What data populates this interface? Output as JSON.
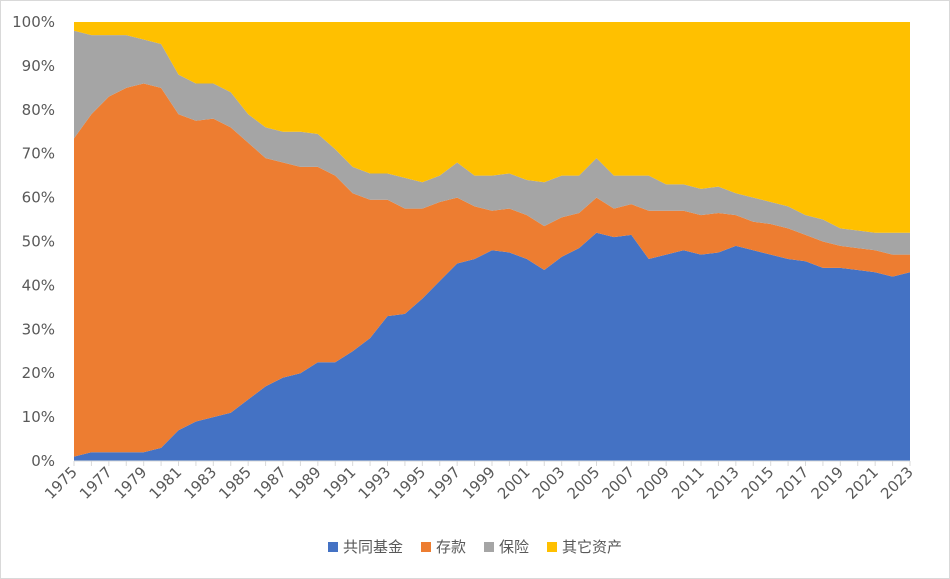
{
  "chart_data": {
    "type": "area",
    "stacked": "percent",
    "title": "",
    "xlabel": "",
    "ylabel": "",
    "ylim": [
      0,
      100
    ],
    "y_ticks": [
      "0%",
      "10%",
      "20%",
      "30%",
      "40%",
      "50%",
      "60%",
      "70%",
      "80%",
      "90%",
      "100%"
    ],
    "grid": false,
    "legend_position": "bottom",
    "x": [
      1975,
      1976,
      1977,
      1978,
      1979,
      1980,
      1981,
      1982,
      1983,
      1984,
      1985,
      1986,
      1987,
      1988,
      1989,
      1990,
      1991,
      1992,
      1993,
      1994,
      1995,
      1996,
      1997,
      1998,
      1999,
      2000,
      2001,
      2002,
      2003,
      2004,
      2005,
      2006,
      2007,
      2008,
      2009,
      2010,
      2011,
      2012,
      2013,
      2014,
      2015,
      2016,
      2017,
      2018,
      2019,
      2020,
      2021,
      2022,
      2023
    ],
    "x_tick_labels": [
      "1975",
      "1977",
      "1979",
      "1981",
      "1983",
      "1985",
      "1987",
      "1989",
      "1991",
      "1993",
      "1995",
      "1997",
      "1999",
      "2001",
      "2003",
      "2005",
      "2007",
      "2009",
      "2011",
      "2013",
      "2015",
      "2017",
      "2019",
      "2021",
      "2023"
    ],
    "series": [
      {
        "name": "共同基金",
        "color": "#4472c4",
        "values": [
          1,
          2,
          2,
          2,
          2,
          3,
          7,
          9,
          10,
          11,
          14,
          17,
          19,
          20,
          22.5,
          22.5,
          25,
          28,
          33,
          33.5,
          37,
          41,
          45,
          46,
          48,
          47.5,
          46,
          43.5,
          46.5,
          48.5,
          52,
          51,
          51.5,
          46,
          47,
          48,
          47,
          47.5,
          49,
          48,
          47,
          46,
          45.5,
          44,
          44,
          43.5,
          43,
          42,
          43
        ]
      },
      {
        "name": "存款",
        "color": "#ed7d31",
        "values": [
          72.5,
          77,
          81,
          83,
          84,
          82,
          72,
          68.5,
          68,
          65,
          58.5,
          52,
          49,
          47,
          44.5,
          42.5,
          36,
          31.5,
          26.5,
          24,
          20.5,
          18,
          15,
          12,
          9,
          10,
          10,
          10,
          9,
          8,
          8,
          6.5,
          7,
          11,
          10,
          9,
          9,
          9,
          7,
          6.5,
          7,
          7,
          6,
          6,
          5,
          5,
          5,
          5,
          4
        ]
      },
      {
        "name": "保险",
        "color": "#a5a5a5",
        "values": [
          24.5,
          18,
          14,
          12,
          10,
          10,
          9,
          8.5,
          8,
          8,
          6.5,
          7,
          7,
          8,
          7.5,
          6,
          6,
          6,
          6,
          7,
          6,
          6,
          8,
          7,
          8,
          8,
          8,
          10,
          9.5,
          8.5,
          9,
          7.5,
          6.5,
          8,
          6,
          6,
          6,
          6,
          5,
          5.5,
          5,
          5,
          4.5,
          5,
          4,
          4,
          4,
          5,
          5
        ]
      },
      {
        "name": "其它资产",
        "color": "#ffc000",
        "values": [
          2,
          3,
          3,
          3,
          4,
          5,
          12,
          14,
          14,
          16,
          21,
          24,
          25,
          25,
          25.5,
          29,
          33,
          34.5,
          34.5,
          35.5,
          36.5,
          35,
          32,
          35,
          35,
          34.5,
          36,
          36.5,
          35,
          35,
          31,
          35,
          35,
          35,
          37,
          37,
          38,
          37.5,
          39,
          40,
          41,
          42,
          44,
          45,
          47,
          47.5,
          48,
          48,
          48
        ]
      }
    ]
  }
}
